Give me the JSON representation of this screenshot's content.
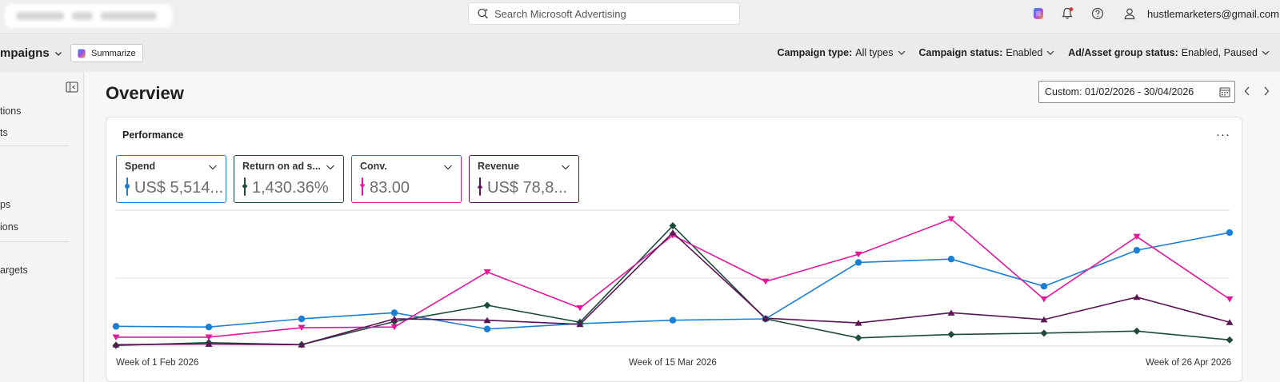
{
  "topbar": {
    "search_placeholder": "Search Microsoft Advertising",
    "email": "hustlemarketers@gmail.com",
    "icons": [
      "copilot-icon",
      "notifications-icon",
      "help-icon",
      "profile-icon"
    ]
  },
  "subbar": {
    "breadcrumb": "mpaigns",
    "summarize_label": "Summarize",
    "filters": [
      {
        "label": "Campaign type:",
        "value": "All types"
      },
      {
        "label": "Campaign status:",
        "value": "Enabled"
      },
      {
        "label": "Ad/Asset group status:",
        "value": "Enabled, Paused"
      }
    ]
  },
  "sidebar": {
    "items": [
      "tions",
      "ts",
      "ps",
      "ions",
      "argets"
    ]
  },
  "main": {
    "title": "Overview",
    "date_range": "Custom: 01/02/2026 - 30/04/2026"
  },
  "performance": {
    "title": "Performance",
    "more_label": "···",
    "metrics": [
      {
        "label": "Spend",
        "value": "US$ 5,514...",
        "color": "#1b7fd4"
      },
      {
        "label": "Return on ad s...",
        "value": "1,430.36%",
        "color": "#1e4a3a"
      },
      {
        "label": "Conv.",
        "value": "83.00",
        "color": "#e3169c"
      },
      {
        "label": "Revenue",
        "value": "US$ 78,8...",
        "color": "#5c1454"
      }
    ]
  },
  "chart_data": {
    "type": "line",
    "x": [
      "Week of 1 Feb 2026",
      "Week of 8 Feb 2026",
      "Week of 15 Feb 2026",
      "Week of 22 Feb 2026",
      "Week of 1 Mar 2026",
      "Week of 8 Mar 2026",
      "Week of 15 Mar 2026",
      "Week of 22 Mar 2026",
      "Week of 29 Mar 2026",
      "Week of 5 Apr 2026",
      "Week of 12 Apr 2026",
      "Week of 19 Apr 2026",
      "Week of 26 Apr 2026"
    ],
    "tick_labels": [
      "Week of 1 Feb 2026",
      "Week of 15 Mar 2026",
      "Week of 26 Apr 2026"
    ],
    "tick_indices": [
      0,
      6,
      12
    ],
    "grid": true,
    "y_axis_shown": false,
    "series": [
      {
        "name": "Spend",
        "color": "#1b7fd4",
        "marker": "circle",
        "values": [
          0.145,
          0.14,
          0.2,
          0.245,
          0.125,
          0.165,
          0.19,
          0.2,
          0.615,
          0.64,
          0.44,
          0.705,
          0.835
        ]
      },
      {
        "name": "Return on ad s...",
        "color": "#1e4a3a",
        "marker": "diamond",
        "values": [
          0.005,
          0.025,
          0.01,
          0.18,
          0.3,
          0.175,
          0.885,
          0.2,
          0.06,
          0.085,
          0.095,
          0.11,
          0.045
        ]
      },
      {
        "name": "Conv.",
        "color": "#e3169c",
        "marker": "triangle-down",
        "values": [
          0.065,
          0.065,
          0.135,
          0.14,
          0.545,
          0.28,
          0.815,
          0.475,
          0.675,
          0.935,
          0.345,
          0.805,
          0.345
        ]
      },
      {
        "name": "Revenue",
        "color": "#5c1454",
        "marker": "triangle-up",
        "values": [
          0.01,
          0.015,
          0.01,
          0.2,
          0.19,
          0.16,
          0.835,
          0.205,
          0.17,
          0.245,
          0.195,
          0.36,
          0.175
        ]
      }
    ]
  }
}
